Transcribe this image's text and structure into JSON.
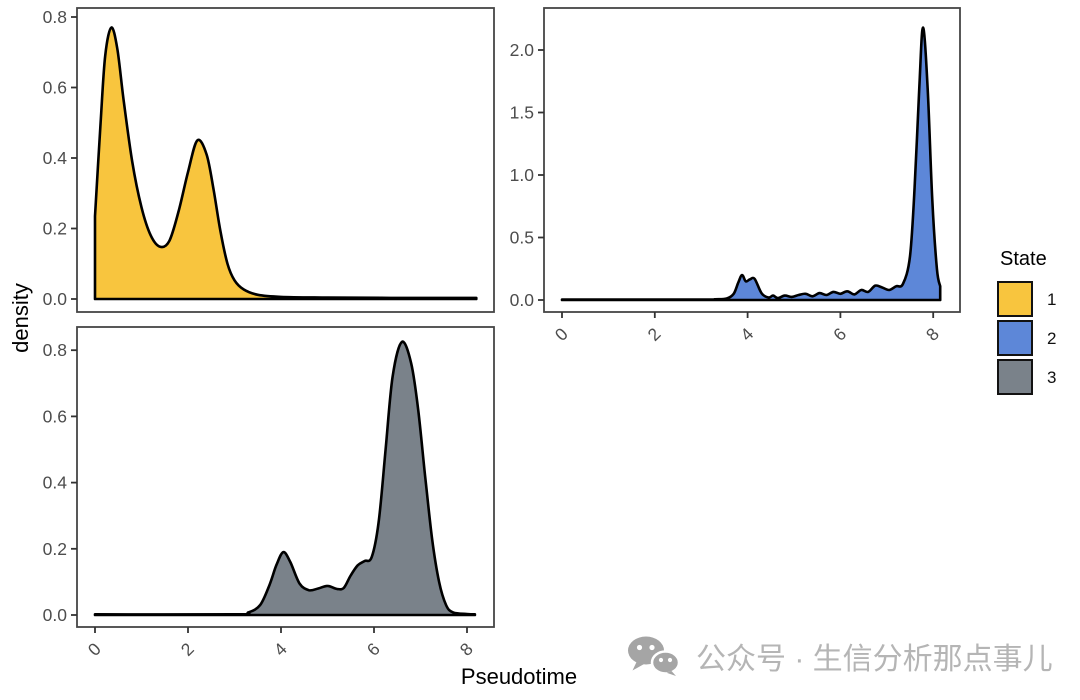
{
  "axes": {
    "x_title": "Pseudotime",
    "y_title": "density",
    "tick_label_color": "#4d4d4d",
    "panel_border_color": "#454545"
  },
  "legend": {
    "title": "State",
    "items": [
      {
        "label": "1",
        "color": "#f8c53e"
      },
      {
        "label": "2",
        "color": "#5d87d8"
      },
      {
        "label": "3",
        "color": "#7a828a"
      }
    ]
  },
  "watermark": {
    "text": "公众号 · 生信分析那点事儿"
  },
  "chart_data": [
    {
      "type": "area",
      "name": "State 1",
      "facet_position": "top-left",
      "fill": "#f8c53e",
      "outline": "#000000",
      "xlabel": "Pseudotime",
      "ylabel": "density",
      "xlim": [
        0,
        8.2
      ],
      "ylim": [
        0,
        0.83
      ],
      "grid": false,
      "x_tick_values": [
        0,
        2,
        4,
        6,
        8
      ],
      "x_tick_labels": [
        "0",
        "2",
        "4",
        "6",
        "8"
      ],
      "show_x_axis": false,
      "y_tick_values": [
        0,
        0.2,
        0.4,
        0.6,
        0.8
      ],
      "y_tick_labels": [
        "0.0",
        "0.2",
        "0.4",
        "0.6",
        "0.8"
      ],
      "x": [
        0.0,
        0.12,
        0.22,
        0.35,
        0.48,
        0.62,
        0.8,
        1.0,
        1.2,
        1.4,
        1.6,
        1.8,
        2.0,
        2.2,
        2.4,
        2.55,
        2.7,
        2.85,
        3.0,
        3.2,
        3.5,
        4.0,
        5.0,
        6.5,
        8.2
      ],
      "density": [
        0.235,
        0.5,
        0.69,
        0.77,
        0.71,
        0.56,
        0.39,
        0.26,
        0.18,
        0.148,
        0.165,
        0.25,
        0.36,
        0.45,
        0.41,
        0.31,
        0.19,
        0.1,
        0.053,
        0.027,
        0.012,
        0.006,
        0.004,
        0.003,
        0.003
      ]
    },
    {
      "type": "area",
      "name": "State 2",
      "facet_position": "top-right",
      "fill": "#5d87d8",
      "outline": "#000000",
      "xlabel": "Pseudotime",
      "ylabel": "density",
      "xlim": [
        0,
        8.15
      ],
      "ylim": [
        0,
        2.3
      ],
      "grid": false,
      "x_tick_values": [
        0,
        2,
        4,
        6,
        8
      ],
      "x_tick_labels": [
        "0",
        "2",
        "4",
        "6",
        "8"
      ],
      "show_x_axis": true,
      "y_tick_values": [
        0,
        0.5,
        1.0,
        1.5,
        2.0
      ],
      "y_tick_labels": [
        "0.0",
        "0.5",
        "1.0",
        "1.5",
        "2.0"
      ],
      "x": [
        0.0,
        3.0,
        3.3,
        3.55,
        3.7,
        3.8,
        3.88,
        3.96,
        4.05,
        4.15,
        4.3,
        4.45,
        4.55,
        4.65,
        4.8,
        4.95,
        5.1,
        5.25,
        5.4,
        5.55,
        5.7,
        5.85,
        6.0,
        6.15,
        6.3,
        6.45,
        6.6,
        6.75,
        6.9,
        7.05,
        7.2,
        7.35,
        7.5,
        7.6,
        7.7,
        7.78,
        7.88,
        7.98,
        8.08,
        8.15
      ],
      "density": [
        0.004,
        0.004,
        0.006,
        0.012,
        0.05,
        0.14,
        0.2,
        0.15,
        0.165,
        0.17,
        0.055,
        0.02,
        0.035,
        0.015,
        0.035,
        0.025,
        0.04,
        0.05,
        0.03,
        0.055,
        0.04,
        0.065,
        0.05,
        0.07,
        0.045,
        0.08,
        0.065,
        0.115,
        0.1,
        0.08,
        0.11,
        0.13,
        0.35,
        0.9,
        1.7,
        2.18,
        1.7,
        0.8,
        0.25,
        0.11
      ]
    },
    {
      "type": "area",
      "name": "State 3",
      "facet_position": "bottom-left",
      "fill": "#7a828a",
      "outline": "#000000",
      "xlabel": "Pseudotime",
      "ylabel": "density",
      "xlim": [
        0,
        8.17
      ],
      "ylim": [
        0,
        0.87
      ],
      "grid": false,
      "x_tick_values": [
        0,
        2,
        4,
        6,
        8
      ],
      "x_tick_labels": [
        "0",
        "2",
        "4",
        "6",
        "8"
      ],
      "show_x_axis": true,
      "y_tick_values": [
        0,
        0.2,
        0.4,
        0.6,
        0.8
      ],
      "y_tick_labels": [
        "0.0",
        "0.2",
        "0.4",
        "0.6",
        "0.8"
      ],
      "x": [
        0.0,
        3.0,
        3.3,
        3.55,
        3.75,
        3.9,
        4.05,
        4.2,
        4.4,
        4.6,
        4.8,
        5.0,
        5.2,
        5.35,
        5.5,
        5.65,
        5.8,
        5.95,
        6.1,
        6.25,
        6.4,
        6.6,
        6.8,
        6.95,
        7.1,
        7.25,
        7.4,
        7.55,
        7.7,
        8.0,
        8.17
      ],
      "density": [
        0.002,
        0.002,
        0.008,
        0.03,
        0.09,
        0.15,
        0.19,
        0.16,
        0.095,
        0.075,
        0.08,
        0.088,
        0.079,
        0.082,
        0.12,
        0.15,
        0.163,
        0.175,
        0.28,
        0.5,
        0.72,
        0.825,
        0.76,
        0.62,
        0.42,
        0.23,
        0.1,
        0.03,
        0.008,
        0.003,
        0.002
      ]
    }
  ]
}
